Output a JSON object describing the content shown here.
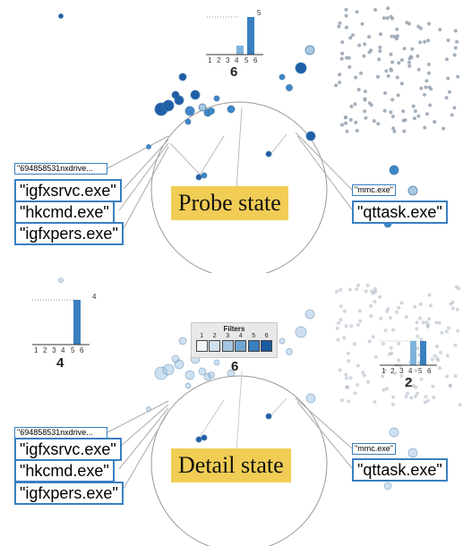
{
  "probe": {
    "state_label": "Probe state",
    "histogram": {
      "count_label": "6",
      "ticks": [
        "1",
        "2",
        "3",
        "4",
        "5",
        "6"
      ],
      "max_label": "5",
      "values": [
        0,
        0,
        0,
        1,
        5,
        0
      ]
    },
    "left_labels": [
      "\"694858531nxdrive...",
      "\"igfxsrvc.exe\"",
      "\"hkcmd.exe\"",
      "\"igfxpers.exe\""
    ],
    "right_labels": [
      "\"mmc.exe\"",
      "\"qttask.exe\""
    ]
  },
  "detail": {
    "state_label": "Detail state",
    "histogram_left": {
      "count_label": "4",
      "ticks": [
        "1",
        "2",
        "3",
        "4",
        "5",
        "6"
      ],
      "max_label": "4",
      "values": [
        0,
        0,
        0,
        0,
        4,
        0
      ]
    },
    "histogram_right": {
      "count_label": "2",
      "ticks": [
        "1",
        "2",
        "3",
        "4",
        "5",
        "6"
      ],
      "values": [
        0,
        0,
        0,
        1,
        1,
        0
      ]
    },
    "filters": {
      "title": "Filters",
      "digits": [
        "1",
        "2",
        "3",
        "4",
        "5",
        "6"
      ],
      "count_label": "6"
    },
    "left_labels": [
      "\"694858531nxdrive...",
      "\"igfxsrvc.exe\"",
      "\"hkcmd.exe\"",
      "\"igfxpers.exe\""
    ],
    "right_labels": [
      "\"mmc.exe\"",
      "\"qttask.exe\""
    ]
  },
  "colors": {
    "accent": "#3a7fc0",
    "highlight": "#f1cd55",
    "node_dark": "#1f5fa8",
    "node_mid": "#3d87c8",
    "node_light": "#a8c8e3",
    "filter_shades": [
      "#f2f6fa",
      "#cfe0ef",
      "#a5c6e2",
      "#6fa5d0",
      "#3a7fc0",
      "#1a5a9e"
    ]
  }
}
